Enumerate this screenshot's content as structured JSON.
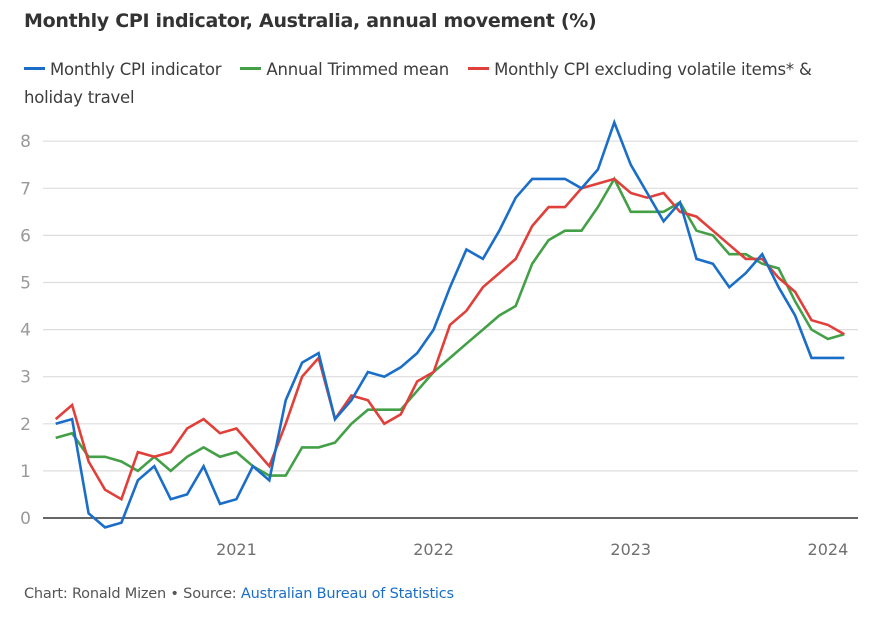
{
  "chart_data": {
    "type": "line",
    "title": "Monthly CPI indicator, Australia, annual movement (%)",
    "xlabel": "",
    "ylabel": "",
    "ylim": [
      -0.5,
      8.5
    ],
    "yticks": [
      0,
      1,
      2,
      3,
      4,
      5,
      6,
      7,
      8
    ],
    "grid": true,
    "legend_position": "top",
    "x_start": "2020-02",
    "x_end": "2024-02",
    "x": [
      "2020-02",
      "2020-03",
      "2020-04",
      "2020-05",
      "2020-06",
      "2020-07",
      "2020-08",
      "2020-09",
      "2020-10",
      "2020-11",
      "2020-12",
      "2021-01",
      "2021-02",
      "2021-03",
      "2021-04",
      "2021-05",
      "2021-06",
      "2021-07",
      "2021-08",
      "2021-09",
      "2021-10",
      "2021-11",
      "2021-12",
      "2022-01",
      "2022-02",
      "2022-03",
      "2022-04",
      "2022-05",
      "2022-06",
      "2022-07",
      "2022-08",
      "2022-09",
      "2022-10",
      "2022-11",
      "2022-12",
      "2023-01",
      "2023-02",
      "2023-03",
      "2023-04",
      "2023-05",
      "2023-06",
      "2023-07",
      "2023-08",
      "2023-09",
      "2023-10",
      "2023-11",
      "2023-12",
      "2024-01",
      "2024-02"
    ],
    "xtick_labels": [
      {
        "label": "2021",
        "at": "2021-01"
      },
      {
        "label": "2022",
        "at": "2022-01"
      },
      {
        "label": "2023",
        "at": "2023-01"
      },
      {
        "label": "2024",
        "at": "2024-01"
      }
    ],
    "series": [
      {
        "name": "Monthly CPI indicator",
        "color": "#1a6ec7",
        "values": [
          2.0,
          2.1,
          0.1,
          -0.2,
          -0.1,
          0.8,
          1.1,
          0.4,
          0.5,
          1.1,
          0.3,
          0.4,
          1.1,
          0.8,
          2.5,
          3.3,
          3.5,
          2.1,
          2.5,
          3.1,
          3.0,
          3.2,
          3.5,
          4.0,
          4.9,
          5.7,
          5.5,
          6.1,
          6.8,
          7.2,
          7.2,
          7.2,
          7.0,
          7.4,
          8.4,
          7.5,
          6.9,
          6.3,
          6.7,
          5.5,
          5.4,
          4.9,
          5.2,
          5.6,
          4.9,
          4.3,
          3.4,
          3.4,
          3.4
        ]
      },
      {
        "name": "Annual Trimmed mean",
        "color": "#43a047",
        "values": [
          1.7,
          1.8,
          1.3,
          1.3,
          1.2,
          1.0,
          1.3,
          1.0,
          1.3,
          1.5,
          1.3,
          1.4,
          1.1,
          0.9,
          0.9,
          1.5,
          1.5,
          1.6,
          2.0,
          2.3,
          2.3,
          2.3,
          2.7,
          3.1,
          3.4,
          3.7,
          4.0,
          4.3,
          4.5,
          5.4,
          5.9,
          6.1,
          6.1,
          6.6,
          7.2,
          6.5,
          6.5,
          6.5,
          6.7,
          6.1,
          6.0,
          5.6,
          5.6,
          5.4,
          5.3,
          4.6,
          4.0,
          3.8,
          3.9
        ]
      },
      {
        "name": "Monthly CPI excluding volatile items* & holiday travel",
        "color": "#e0403a",
        "values": [
          2.1,
          2.4,
          1.2,
          0.6,
          0.4,
          1.4,
          1.3,
          1.4,
          1.9,
          2.1,
          1.8,
          1.9,
          1.5,
          1.1,
          2.0,
          3.0,
          3.4,
          2.1,
          2.6,
          2.5,
          2.0,
          2.2,
          2.9,
          3.1,
          4.1,
          4.4,
          4.9,
          5.2,
          5.5,
          6.2,
          6.6,
          6.6,
          7.0,
          7.1,
          7.2,
          6.9,
          6.8,
          6.9,
          6.5,
          6.4,
          6.1,
          5.8,
          5.5,
          5.5,
          5.1,
          4.8,
          4.2,
          4.1,
          3.9
        ]
      }
    ]
  },
  "footer": {
    "credit": "Chart: Ronald Mizen • Source: ",
    "source_link": "Australian Bureau of Statistics",
    "link_color": "#1a6ec7"
  }
}
